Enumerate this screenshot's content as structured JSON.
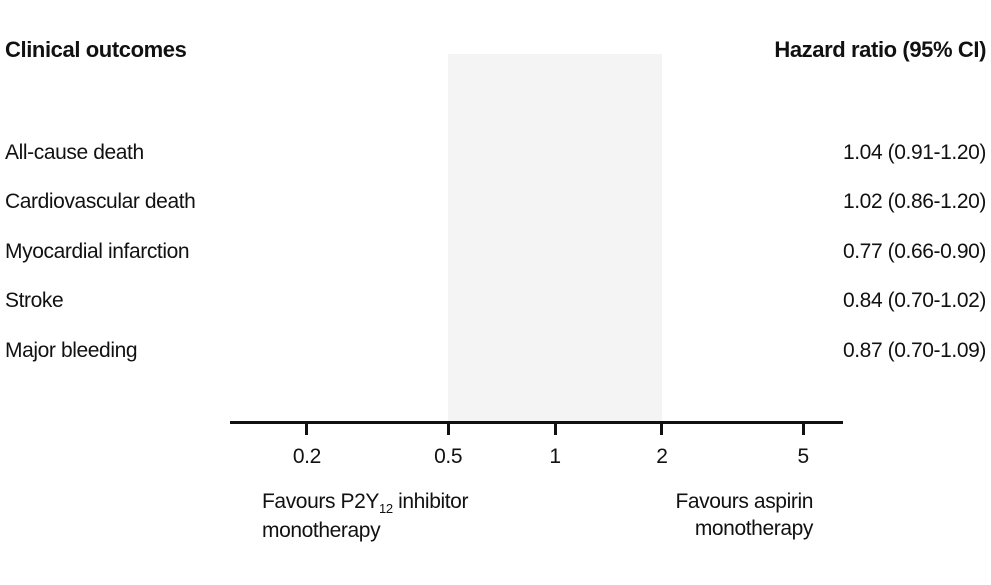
{
  "header": {
    "left": "Clinical outcomes",
    "right": "Hazard ratio (95% CI)"
  },
  "chart_data": {
    "type": "scatter",
    "subtype": "forest-plot",
    "title": "",
    "xscale": "log",
    "xlim": [
      0.13,
      6.5
    ],
    "x_tick_labels": [
      "0.2",
      "0.5",
      "1",
      "2",
      "5"
    ],
    "x_tick_values": [
      0.2,
      0.5,
      1,
      2,
      5
    ],
    "reference_line": 1,
    "shaded_band": [
      0.5,
      2
    ],
    "grid": "off",
    "marker_shape": "square",
    "marker_color": "#EF945F",
    "band_color": "#F4F4F4",
    "ci_color": "#111111",
    "points": [
      {
        "label": "All-cause death",
        "hr": 1.04,
        "low": 0.91,
        "high": 1.2,
        "text": "1.04 (0.91-1.20)"
      },
      {
        "label": "Cardiovascular death",
        "hr": 1.02,
        "low": 0.86,
        "high": 1.2,
        "text": "1.02 (0.86-1.20)"
      },
      {
        "label": "Myocardial infarction",
        "hr": 0.77,
        "low": 0.66,
        "high": 0.9,
        "text": "0.77 (0.66-0.90)"
      },
      {
        "label": "Stroke",
        "hr": 0.84,
        "low": 0.7,
        "high": 1.02,
        "text": "0.84 (0.70-1.02)"
      },
      {
        "label": "Major bleeding",
        "hr": 0.87,
        "low": 0.7,
        "high": 1.09,
        "text": "0.87 (0.70-1.09)"
      }
    ],
    "direction_labels": {
      "left": {
        "prefix": "Favours P2Y",
        "sub": "12",
        "suffix": " inhibitor",
        "line2": "monotherapy"
      },
      "right": {
        "line1": "Favours aspirin",
        "line2": "monotherapy"
      }
    }
  }
}
